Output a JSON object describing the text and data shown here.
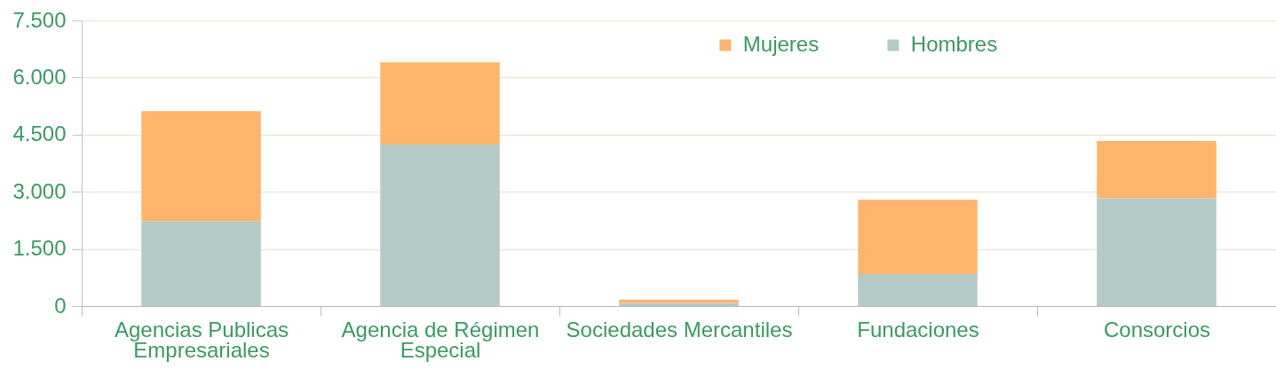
{
  "chart_data": {
    "type": "bar",
    "stacked": true,
    "categories": [
      "Agencias Publicas Empresariales",
      "Agencia de Régimen Especial",
      "Sociedades Mercantiles",
      "Fundaciones",
      "Consorcios"
    ],
    "series": [
      {
        "name": "Hombres",
        "color": "#b3cac6",
        "values": [
          2230,
          4240,
          80,
          840,
          2830
        ]
      },
      {
        "name": "Mujeres",
        "color": "#ffb46c",
        "values": [
          2890,
          2160,
          90,
          1950,
          1500
        ]
      }
    ],
    "ylim": [
      0,
      7500
    ],
    "yticks": [
      0,
      {
        "value": 1500,
        "label": "1.500"
      },
      {
        "value": 3000,
        "label": "3.000"
      },
      {
        "value": 4500,
        "label": "4.500"
      },
      {
        "value": 6000,
        "label": "6.000"
      },
      {
        "value": 7500,
        "label": "7.500"
      }
    ],
    "grid": "y",
    "legend": "top"
  }
}
